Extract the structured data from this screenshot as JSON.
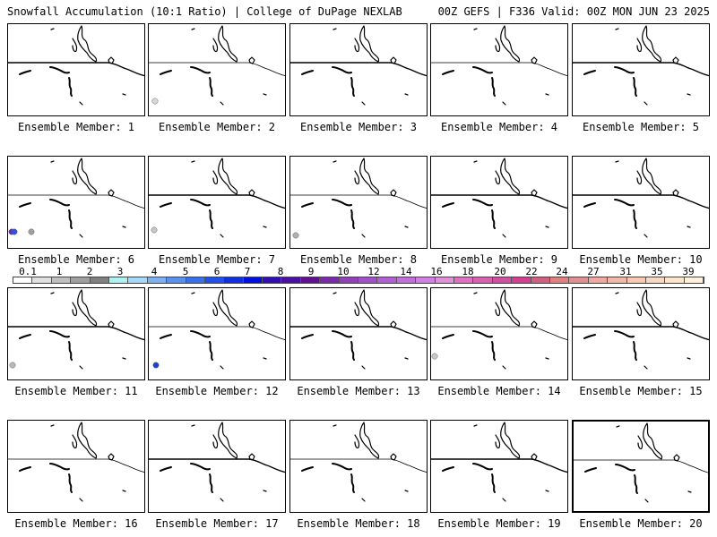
{
  "header": {
    "left": "Snowfall Accumulation (10:1 Ratio) | College of DuPage NEXLAB",
    "right": "00Z GEFS | F336 Valid: 00Z MON JUN 23 2025"
  },
  "panels": [
    {
      "label": "Ensemble Member: 1",
      "snow": []
    },
    {
      "label": "Ensemble Member: 2",
      "snow": [
        {
          "color": "#d8d8d8"
        }
      ]
    },
    {
      "label": "Ensemble Member: 3",
      "snow": []
    },
    {
      "label": "Ensemble Member: 4",
      "snow": []
    },
    {
      "label": "Ensemble Member: 5",
      "snow": []
    },
    {
      "label": "Ensemble Member: 6",
      "snow": [
        {
          "color": "#5a2bb0"
        },
        {
          "color": "#3050e0"
        },
        {
          "color": "#a0a0a0"
        }
      ]
    },
    {
      "label": "Ensemble Member: 7",
      "snow": [
        {
          "color": "#c8c8c8"
        }
      ]
    },
    {
      "label": "Ensemble Member: 8",
      "snow": [
        {
          "color": "#b0b0b0"
        }
      ]
    },
    {
      "label": "Ensemble Member: 9",
      "snow": []
    },
    {
      "label": "Ensemble Member: 10",
      "snow": []
    },
    {
      "label": "Ensemble Member: 11",
      "snow": [
        {
          "color": "#b8b8b8"
        }
      ]
    },
    {
      "label": "Ensemble Member: 12",
      "snow": [
        {
          "color": "#2040d0"
        }
      ]
    },
    {
      "label": "Ensemble Member: 13",
      "snow": []
    },
    {
      "label": "Ensemble Member: 14",
      "snow": [
        {
          "color": "#c8c8c8"
        }
      ]
    },
    {
      "label": "Ensemble Member: 15",
      "snow": []
    },
    {
      "label": "Ensemble Member: 16",
      "snow": []
    },
    {
      "label": "Ensemble Member: 17",
      "snow": []
    },
    {
      "label": "Ensemble Member: 18",
      "snow": []
    },
    {
      "label": "Ensemble Member: 19",
      "snow": []
    },
    {
      "label": "Ensemble Member: 20",
      "snow": []
    }
  ],
  "colorbar": {
    "labels": [
      "0.1",
      "1",
      "2",
      "3",
      "4",
      "5",
      "6",
      "7",
      "8",
      "9",
      "10",
      "12",
      "14",
      "16",
      "18",
      "20",
      "22",
      "24",
      "27",
      "31",
      "35",
      "39"
    ],
    "colors": [
      "#ffffff",
      "#e0e0e0",
      "#c0c0c0",
      "#a0a0a0",
      "#808080",
      "#b0f0f0",
      "#a8d8f8",
      "#80b0f0",
      "#5a90ee",
      "#3a70ec",
      "#2050e8",
      "#1030e0",
      "#0010d8",
      "#3010b0",
      "#4a10a0",
      "#601090",
      "#7a2aa8",
      "#9040b8",
      "#a050c8",
      "#b060d0",
      "#c070d8",
      "#d080e0",
      "#e090d8",
      "#e070c0",
      "#d860b0",
      "#d050a0",
      "#d04090",
      "#d06080",
      "#e08080",
      "#e09090",
      "#f0a8a0",
      "#f0b8a8",
      "#f8c8b0",
      "#f8d8c0",
      "#fce4cc",
      "#fff0dc"
    ]
  }
}
